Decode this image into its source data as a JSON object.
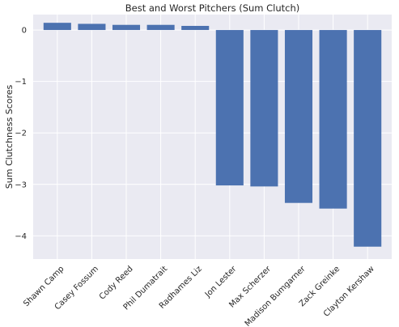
{
  "chart_data": {
    "type": "bar",
    "title": "Best and Worst Pitchers (Sum Clutch)",
    "xlabel": "",
    "ylabel": "Sum Clutchness Scores",
    "categories": [
      "Shawn Camp",
      "Casey Fossum",
      "Cody Reed",
      "Phil Dumatrait",
      "Radhames Liz",
      "Jon Lester",
      "Max Scherzer",
      "Madison Bumgarner",
      "Zack Greinke",
      "Clayton Kershaw"
    ],
    "values": [
      0.14,
      0.12,
      0.1,
      0.1,
      0.08,
      -3.02,
      -3.04,
      -3.36,
      -3.47,
      -4.21
    ],
    "ylim": [
      -4.45,
      0.3
    ],
    "yticks": [
      0,
      -1,
      -2,
      -3,
      -4
    ],
    "ytick_labels": [
      "0",
      "−1",
      "−2",
      "−3",
      "−4"
    ],
    "grid": true,
    "colors": {
      "bar": "#4c72b0",
      "background": "#eaeaf2",
      "grid": "#ffffff"
    }
  }
}
